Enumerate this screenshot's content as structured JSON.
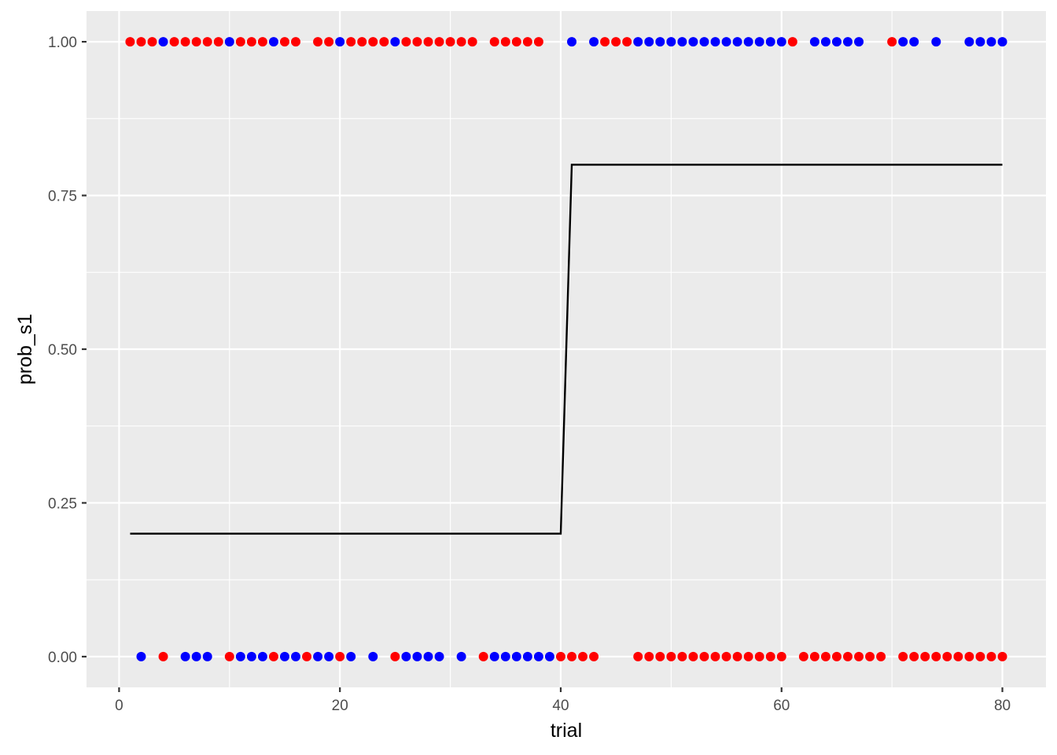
{
  "chart_data": {
    "type": "scatter",
    "title": "",
    "xlabel": "trial",
    "ylabel": "prob_s1",
    "xlim": [
      -2.95,
      83.95
    ],
    "ylim": [
      -0.05,
      1.05
    ],
    "x_ticks": [
      0,
      20,
      40,
      60,
      80
    ],
    "y_ticks": [
      0.0,
      0.25,
      0.5,
      0.75,
      1.0
    ],
    "x_tick_labels": [
      "0",
      "20",
      "40",
      "60",
      "80"
    ],
    "y_tick_labels": [
      "0.00",
      "0.25",
      "0.50",
      "0.75",
      "1.00"
    ],
    "grid": true,
    "legend": "none",
    "colors": {
      "panel": "#EBEBEB",
      "grid": "#FFFFFF",
      "red": "#FF0000",
      "blue": "#0000FF",
      "line": "#000000"
    },
    "line": {
      "x": [
        1,
        40,
        41,
        80
      ],
      "y": [
        0.2,
        0.2,
        0.8,
        0.8
      ]
    },
    "points": [
      {
        "x": 1,
        "y": 1,
        "color": "red"
      },
      {
        "x": 2,
        "y": 1,
        "color": "red"
      },
      {
        "x": 3,
        "y": 1,
        "color": "red"
      },
      {
        "x": 4,
        "y": 1,
        "color": "blue"
      },
      {
        "x": 5,
        "y": 1,
        "color": "red"
      },
      {
        "x": 6,
        "y": 1,
        "color": "red"
      },
      {
        "x": 7,
        "y": 1,
        "color": "red"
      },
      {
        "x": 8,
        "y": 1,
        "color": "red"
      },
      {
        "x": 9,
        "y": 1,
        "color": "red"
      },
      {
        "x": 10,
        "y": 1,
        "color": "blue"
      },
      {
        "x": 11,
        "y": 1,
        "color": "red"
      },
      {
        "x": 12,
        "y": 1,
        "color": "red"
      },
      {
        "x": 13,
        "y": 1,
        "color": "red"
      },
      {
        "x": 14,
        "y": 1,
        "color": "blue"
      },
      {
        "x": 15,
        "y": 1,
        "color": "red"
      },
      {
        "x": 16,
        "y": 1,
        "color": "red"
      },
      {
        "x": 18,
        "y": 1,
        "color": "red"
      },
      {
        "x": 19,
        "y": 1,
        "color": "red"
      },
      {
        "x": 20,
        "y": 1,
        "color": "blue"
      },
      {
        "x": 21,
        "y": 1,
        "color": "red"
      },
      {
        "x": 22,
        "y": 1,
        "color": "red"
      },
      {
        "x": 23,
        "y": 1,
        "color": "red"
      },
      {
        "x": 24,
        "y": 1,
        "color": "red"
      },
      {
        "x": 25,
        "y": 1,
        "color": "blue"
      },
      {
        "x": 26,
        "y": 1,
        "color": "red"
      },
      {
        "x": 27,
        "y": 1,
        "color": "red"
      },
      {
        "x": 28,
        "y": 1,
        "color": "red"
      },
      {
        "x": 29,
        "y": 1,
        "color": "red"
      },
      {
        "x": 30,
        "y": 1,
        "color": "red"
      },
      {
        "x": 31,
        "y": 1,
        "color": "red"
      },
      {
        "x": 32,
        "y": 1,
        "color": "red"
      },
      {
        "x": 34,
        "y": 1,
        "color": "red"
      },
      {
        "x": 35,
        "y": 1,
        "color": "red"
      },
      {
        "x": 36,
        "y": 1,
        "color": "red"
      },
      {
        "x": 37,
        "y": 1,
        "color": "red"
      },
      {
        "x": 38,
        "y": 1,
        "color": "red"
      },
      {
        "x": 41,
        "y": 1,
        "color": "blue"
      },
      {
        "x": 43,
        "y": 1,
        "color": "blue"
      },
      {
        "x": 44,
        "y": 1,
        "color": "red"
      },
      {
        "x": 45,
        "y": 1,
        "color": "red"
      },
      {
        "x": 46,
        "y": 1,
        "color": "red"
      },
      {
        "x": 47,
        "y": 1,
        "color": "blue"
      },
      {
        "x": 48,
        "y": 1,
        "color": "blue"
      },
      {
        "x": 49,
        "y": 1,
        "color": "blue"
      },
      {
        "x": 50,
        "y": 1,
        "color": "blue"
      },
      {
        "x": 51,
        "y": 1,
        "color": "blue"
      },
      {
        "x": 52,
        "y": 1,
        "color": "blue"
      },
      {
        "x": 53,
        "y": 1,
        "color": "blue"
      },
      {
        "x": 54,
        "y": 1,
        "color": "blue"
      },
      {
        "x": 55,
        "y": 1,
        "color": "blue"
      },
      {
        "x": 56,
        "y": 1,
        "color": "blue"
      },
      {
        "x": 57,
        "y": 1,
        "color": "blue"
      },
      {
        "x": 58,
        "y": 1,
        "color": "blue"
      },
      {
        "x": 59,
        "y": 1,
        "color": "blue"
      },
      {
        "x": 60,
        "y": 1,
        "color": "blue"
      },
      {
        "x": 61,
        "y": 1,
        "color": "red"
      },
      {
        "x": 63,
        "y": 1,
        "color": "blue"
      },
      {
        "x": 64,
        "y": 1,
        "color": "blue"
      },
      {
        "x": 65,
        "y": 1,
        "color": "blue"
      },
      {
        "x": 66,
        "y": 1,
        "color": "blue"
      },
      {
        "x": 67,
        "y": 1,
        "color": "blue"
      },
      {
        "x": 70,
        "y": 1,
        "color": "red"
      },
      {
        "x": 71,
        "y": 1,
        "color": "blue"
      },
      {
        "x": 72,
        "y": 1,
        "color": "blue"
      },
      {
        "x": 74,
        "y": 1,
        "color": "blue"
      },
      {
        "x": 77,
        "y": 1,
        "color": "blue"
      },
      {
        "x": 78,
        "y": 1,
        "color": "blue"
      },
      {
        "x": 79,
        "y": 1,
        "color": "blue"
      },
      {
        "x": 80,
        "y": 1,
        "color": "blue"
      },
      {
        "x": 2,
        "y": 0,
        "color": "blue"
      },
      {
        "x": 4,
        "y": 0,
        "color": "red"
      },
      {
        "x": 6,
        "y": 0,
        "color": "blue"
      },
      {
        "x": 7,
        "y": 0,
        "color": "blue"
      },
      {
        "x": 8,
        "y": 0,
        "color": "blue"
      },
      {
        "x": 10,
        "y": 0,
        "color": "red"
      },
      {
        "x": 11,
        "y": 0,
        "color": "blue"
      },
      {
        "x": 12,
        "y": 0,
        "color": "blue"
      },
      {
        "x": 13,
        "y": 0,
        "color": "blue"
      },
      {
        "x": 14,
        "y": 0,
        "color": "red"
      },
      {
        "x": 15,
        "y": 0,
        "color": "blue"
      },
      {
        "x": 16,
        "y": 0,
        "color": "blue"
      },
      {
        "x": 17,
        "y": 0,
        "color": "red"
      },
      {
        "x": 18,
        "y": 0,
        "color": "blue"
      },
      {
        "x": 19,
        "y": 0,
        "color": "blue"
      },
      {
        "x": 20,
        "y": 0,
        "color": "red"
      },
      {
        "x": 21,
        "y": 0,
        "color": "blue"
      },
      {
        "x": 23,
        "y": 0,
        "color": "blue"
      },
      {
        "x": 25,
        "y": 0,
        "color": "red"
      },
      {
        "x": 26,
        "y": 0,
        "color": "blue"
      },
      {
        "x": 27,
        "y": 0,
        "color": "blue"
      },
      {
        "x": 28,
        "y": 0,
        "color": "blue"
      },
      {
        "x": 29,
        "y": 0,
        "color": "blue"
      },
      {
        "x": 31,
        "y": 0,
        "color": "blue"
      },
      {
        "x": 33,
        "y": 0,
        "color": "red"
      },
      {
        "x": 34,
        "y": 0,
        "color": "blue"
      },
      {
        "x": 35,
        "y": 0,
        "color": "blue"
      },
      {
        "x": 36,
        "y": 0,
        "color": "blue"
      },
      {
        "x": 37,
        "y": 0,
        "color": "blue"
      },
      {
        "x": 38,
        "y": 0,
        "color": "blue"
      },
      {
        "x": 39,
        "y": 0,
        "color": "blue"
      },
      {
        "x": 40,
        "y": 0,
        "color": "red"
      },
      {
        "x": 41,
        "y": 0,
        "color": "red"
      },
      {
        "x": 42,
        "y": 0,
        "color": "red"
      },
      {
        "x": 43,
        "y": 0,
        "color": "red"
      },
      {
        "x": 47,
        "y": 0,
        "color": "red"
      },
      {
        "x": 48,
        "y": 0,
        "color": "red"
      },
      {
        "x": 49,
        "y": 0,
        "color": "red"
      },
      {
        "x": 50,
        "y": 0,
        "color": "red"
      },
      {
        "x": 51,
        "y": 0,
        "color": "red"
      },
      {
        "x": 52,
        "y": 0,
        "color": "red"
      },
      {
        "x": 53,
        "y": 0,
        "color": "red"
      },
      {
        "x": 54,
        "y": 0,
        "color": "red"
      },
      {
        "x": 55,
        "y": 0,
        "color": "red"
      },
      {
        "x": 56,
        "y": 0,
        "color": "red"
      },
      {
        "x": 57,
        "y": 0,
        "color": "red"
      },
      {
        "x": 58,
        "y": 0,
        "color": "red"
      },
      {
        "x": 59,
        "y": 0,
        "color": "red"
      },
      {
        "x": 60,
        "y": 0,
        "color": "red"
      },
      {
        "x": 62,
        "y": 0,
        "color": "red"
      },
      {
        "x": 63,
        "y": 0,
        "color": "red"
      },
      {
        "x": 64,
        "y": 0,
        "color": "red"
      },
      {
        "x": 65,
        "y": 0,
        "color": "red"
      },
      {
        "x": 66,
        "y": 0,
        "color": "red"
      },
      {
        "x": 67,
        "y": 0,
        "color": "red"
      },
      {
        "x": 68,
        "y": 0,
        "color": "red"
      },
      {
        "x": 69,
        "y": 0,
        "color": "red"
      },
      {
        "x": 71,
        "y": 0,
        "color": "red"
      },
      {
        "x": 72,
        "y": 0,
        "color": "red"
      },
      {
        "x": 73,
        "y": 0,
        "color": "red"
      },
      {
        "x": 74,
        "y": 0,
        "color": "red"
      },
      {
        "x": 75,
        "y": 0,
        "color": "red"
      },
      {
        "x": 76,
        "y": 0,
        "color": "red"
      },
      {
        "x": 77,
        "y": 0,
        "color": "red"
      },
      {
        "x": 78,
        "y": 0,
        "color": "red"
      },
      {
        "x": 79,
        "y": 0,
        "color": "red"
      },
      {
        "x": 80,
        "y": 0,
        "color": "red"
      }
    ]
  }
}
